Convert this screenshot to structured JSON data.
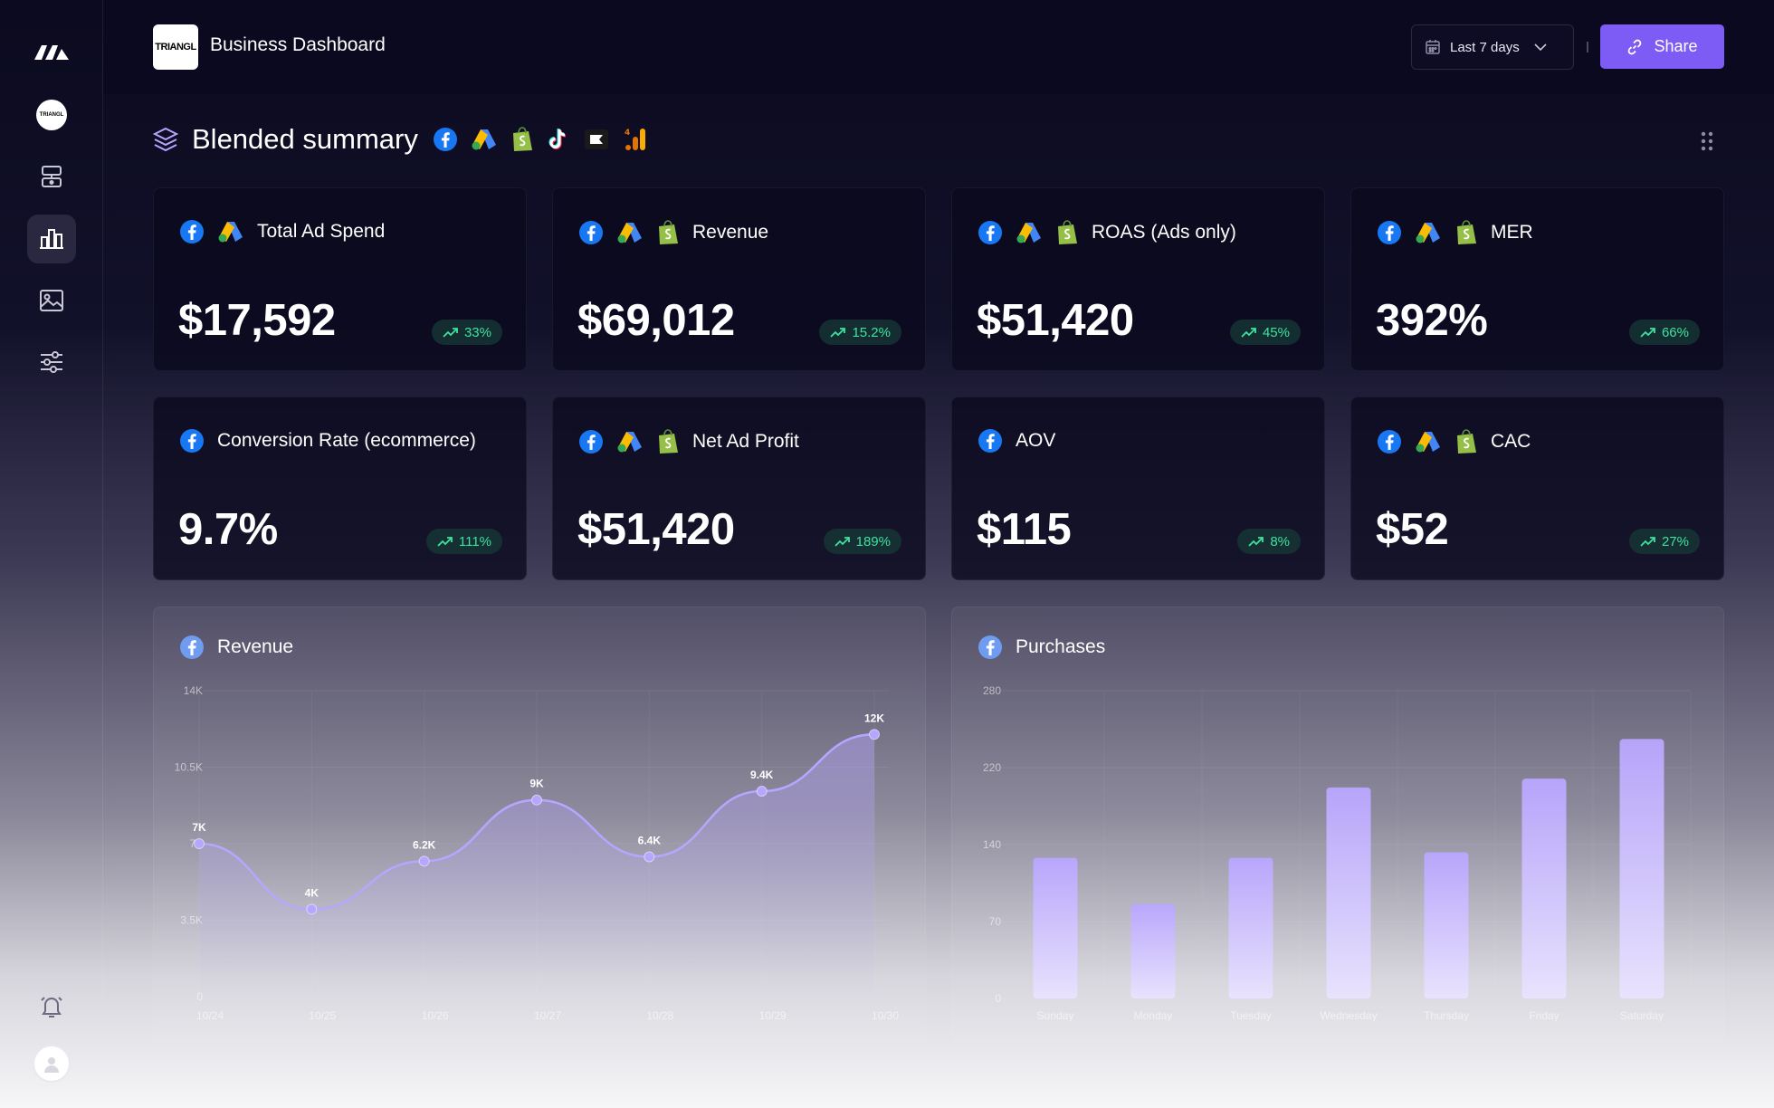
{
  "header": {
    "brand_logo_text": "TRIANGL",
    "title": "Business Dashboard",
    "date_range": "Last 7 days",
    "share_label": "Share"
  },
  "sidebar": {
    "items": [
      {
        "name": "workspace-logo"
      },
      {
        "name": "triangl-brand"
      },
      {
        "name": "integrations"
      },
      {
        "name": "analytics",
        "active": true
      },
      {
        "name": "creatives"
      },
      {
        "name": "settings"
      }
    ]
  },
  "section": {
    "title": "Blended summary",
    "sources": [
      "facebook",
      "google-ads",
      "shopify",
      "tiktok",
      "klaviyo",
      "google-analytics"
    ]
  },
  "kpis": [
    {
      "label": "Total Ad Spend",
      "value": "$17,592",
      "change": "33%",
      "sources": [
        "facebook",
        "google-ads"
      ]
    },
    {
      "label": "Revenue",
      "value": "$69,012",
      "change": "15.2%",
      "sources": [
        "facebook",
        "google-ads",
        "shopify"
      ]
    },
    {
      "label": "ROAS (Ads only)",
      "value": "$51,420",
      "change": "45%",
      "sources": [
        "facebook",
        "google-ads",
        "shopify"
      ]
    },
    {
      "label": "MER",
      "value": "392%",
      "change": "66%",
      "sources": [
        "facebook",
        "google-ads",
        "shopify"
      ]
    },
    {
      "label": "Conversion Rate (ecommerce)",
      "value": "9.7%",
      "change": "111%",
      "sources": [
        "facebook"
      ]
    },
    {
      "label": "Net Ad Profit",
      "value": "$51,420",
      "change": "189%",
      "sources": [
        "facebook",
        "google-ads",
        "shopify"
      ]
    },
    {
      "label": "AOV",
      "value": "$115",
      "change": "8%",
      "sources": [
        "facebook"
      ]
    },
    {
      "label": "CAC",
      "value": "$52",
      "change": "27%",
      "sources": [
        "facebook",
        "google-ads",
        "shopify"
      ]
    }
  ],
  "colors": {
    "accent": "#7c5cf5",
    "positive": "#3ee2a0",
    "chart_line": "#b7a6ff",
    "bar": "#c9bcff"
  },
  "chart_data": [
    {
      "type": "line",
      "title": "Revenue",
      "x": [
        "10/24",
        "10/25",
        "10/26",
        "10/27",
        "10/28",
        "10/29",
        "10/30"
      ],
      "values": [
        7000,
        4000,
        6200,
        9000,
        6400,
        9400,
        12000
      ],
      "point_labels": [
        "7K",
        "4K",
        "6.2K",
        "9K",
        "6.4K",
        "9.4K",
        "12K"
      ],
      "y_ticks": [
        "0",
        "3.5K",
        "7K",
        "10.5K",
        "14K"
      ],
      "ylim": [
        0,
        14000
      ],
      "grid": true
    },
    {
      "type": "bar",
      "title": "Purchases",
      "categories": [
        "Sunday",
        "Monday",
        "Tuesday",
        "Wednesday",
        "Thursday",
        "Friday",
        "Saturday"
      ],
      "values": [
        128,
        86,
        128,
        192,
        133,
        200,
        236
      ],
      "y_ticks": [
        "0",
        "70",
        "140",
        "220",
        "280"
      ],
      "ylim": [
        0,
        280
      ],
      "grid": true
    }
  ]
}
